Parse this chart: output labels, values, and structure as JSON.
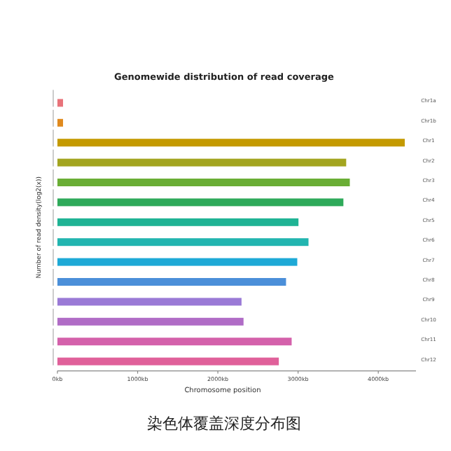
{
  "chart_data": {
    "type": "bar",
    "orientation": "horizontal",
    "title": "Genomewide distribution of read coverage",
    "xlabel": "Chromosome position",
    "ylabel": "Number of read density(log2(x))",
    "categories": [
      "Chr1a",
      "Chr1b",
      "Chr1",
      "Chr2",
      "Chr3",
      "Chr4",
      "Chr5",
      "Chr6",
      "Chr7",
      "Chr8",
      "Chr9",
      "Chr10",
      "Chr11",
      "Chr12"
    ],
    "values": [
      70,
      70,
      4330,
      3600,
      3645,
      3565,
      3005,
      3130,
      2990,
      2850,
      2295,
      2320,
      2920,
      2760
    ],
    "colors": [
      "#e8737a",
      "#e08a1e",
      "#c49a00",
      "#a3a520",
      "#6aae35",
      "#2eaa5a",
      "#1fb394",
      "#22b5b0",
      "#1ea9d6",
      "#4b8fd9",
      "#9a7ad6",
      "#b06cc6",
      "#d461ab",
      "#e0609a"
    ],
    "xlim": [
      0,
      4470
    ],
    "xticks": [
      {
        "value": 0,
        "label": "0kb"
      },
      {
        "value": 1000,
        "label": "1000kb"
      },
      {
        "value": 2000,
        "label": "2000kb"
      },
      {
        "value": 3000,
        "label": "3000kb"
      },
      {
        "value": 4000,
        "label": "4000kb"
      }
    ],
    "annotations": [
      "染色体覆盖深度分布图"
    ]
  }
}
